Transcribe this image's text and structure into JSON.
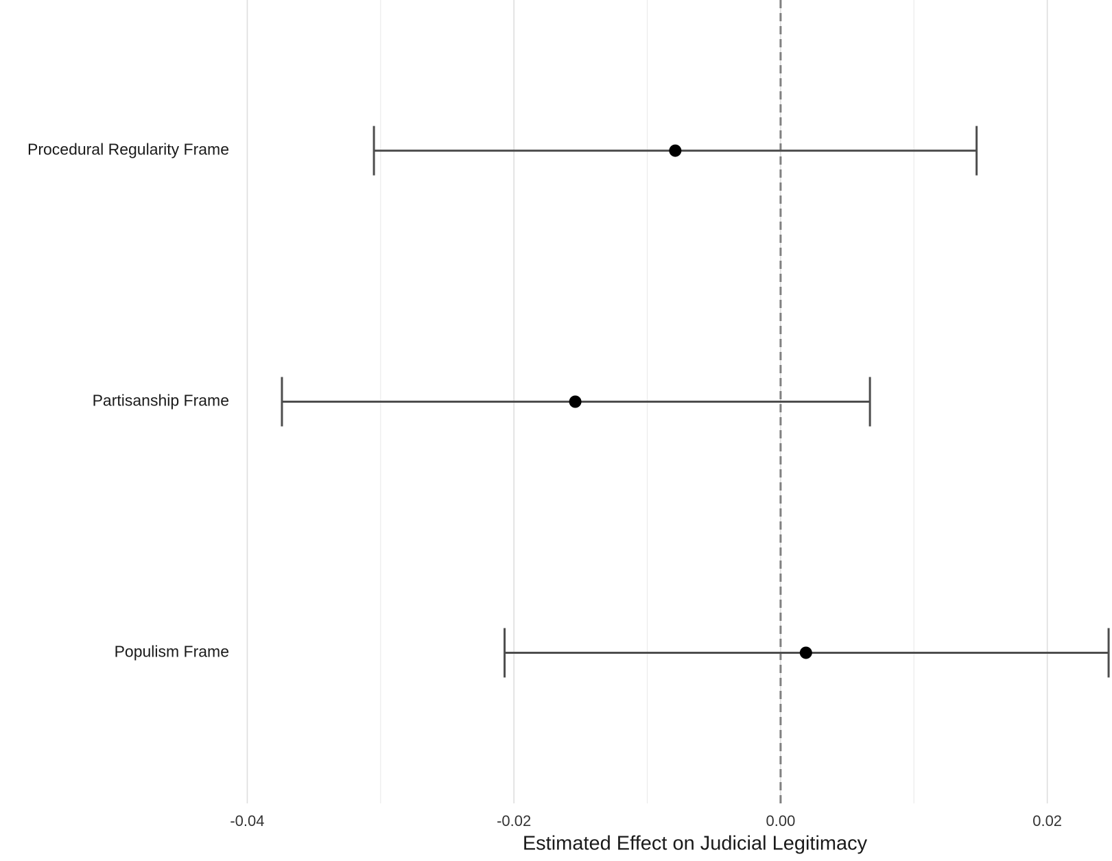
{
  "chart_data": {
    "type": "coefficient",
    "x_label": "Estimated Effect on Judicial Legitimacy",
    "categories": [
      "Procedural Regularity Frame",
      "Partisanship Frame",
      "Populism Frame"
    ],
    "values": [
      -0.0079,
      -0.0154,
      0.0019
    ],
    "lower": [
      -0.0305,
      -0.0374,
      -0.0207
    ],
    "upper": [
      0.0147,
      0.0067,
      0.0246
    ],
    "color": "#000000",
    "errorbar_color": "#4d4d4d",
    "xlim": [
      -0.041,
      0.0247
    ],
    "xticks": [
      -0.04,
      -0.02,
      {
        "value": 0,
        "label": "0.00"
      },
      0.02
    ],
    "xminor": [
      -0.03,
      -0.01,
      0.01
    ],
    "reference_line": 0,
    "grid": true
  }
}
